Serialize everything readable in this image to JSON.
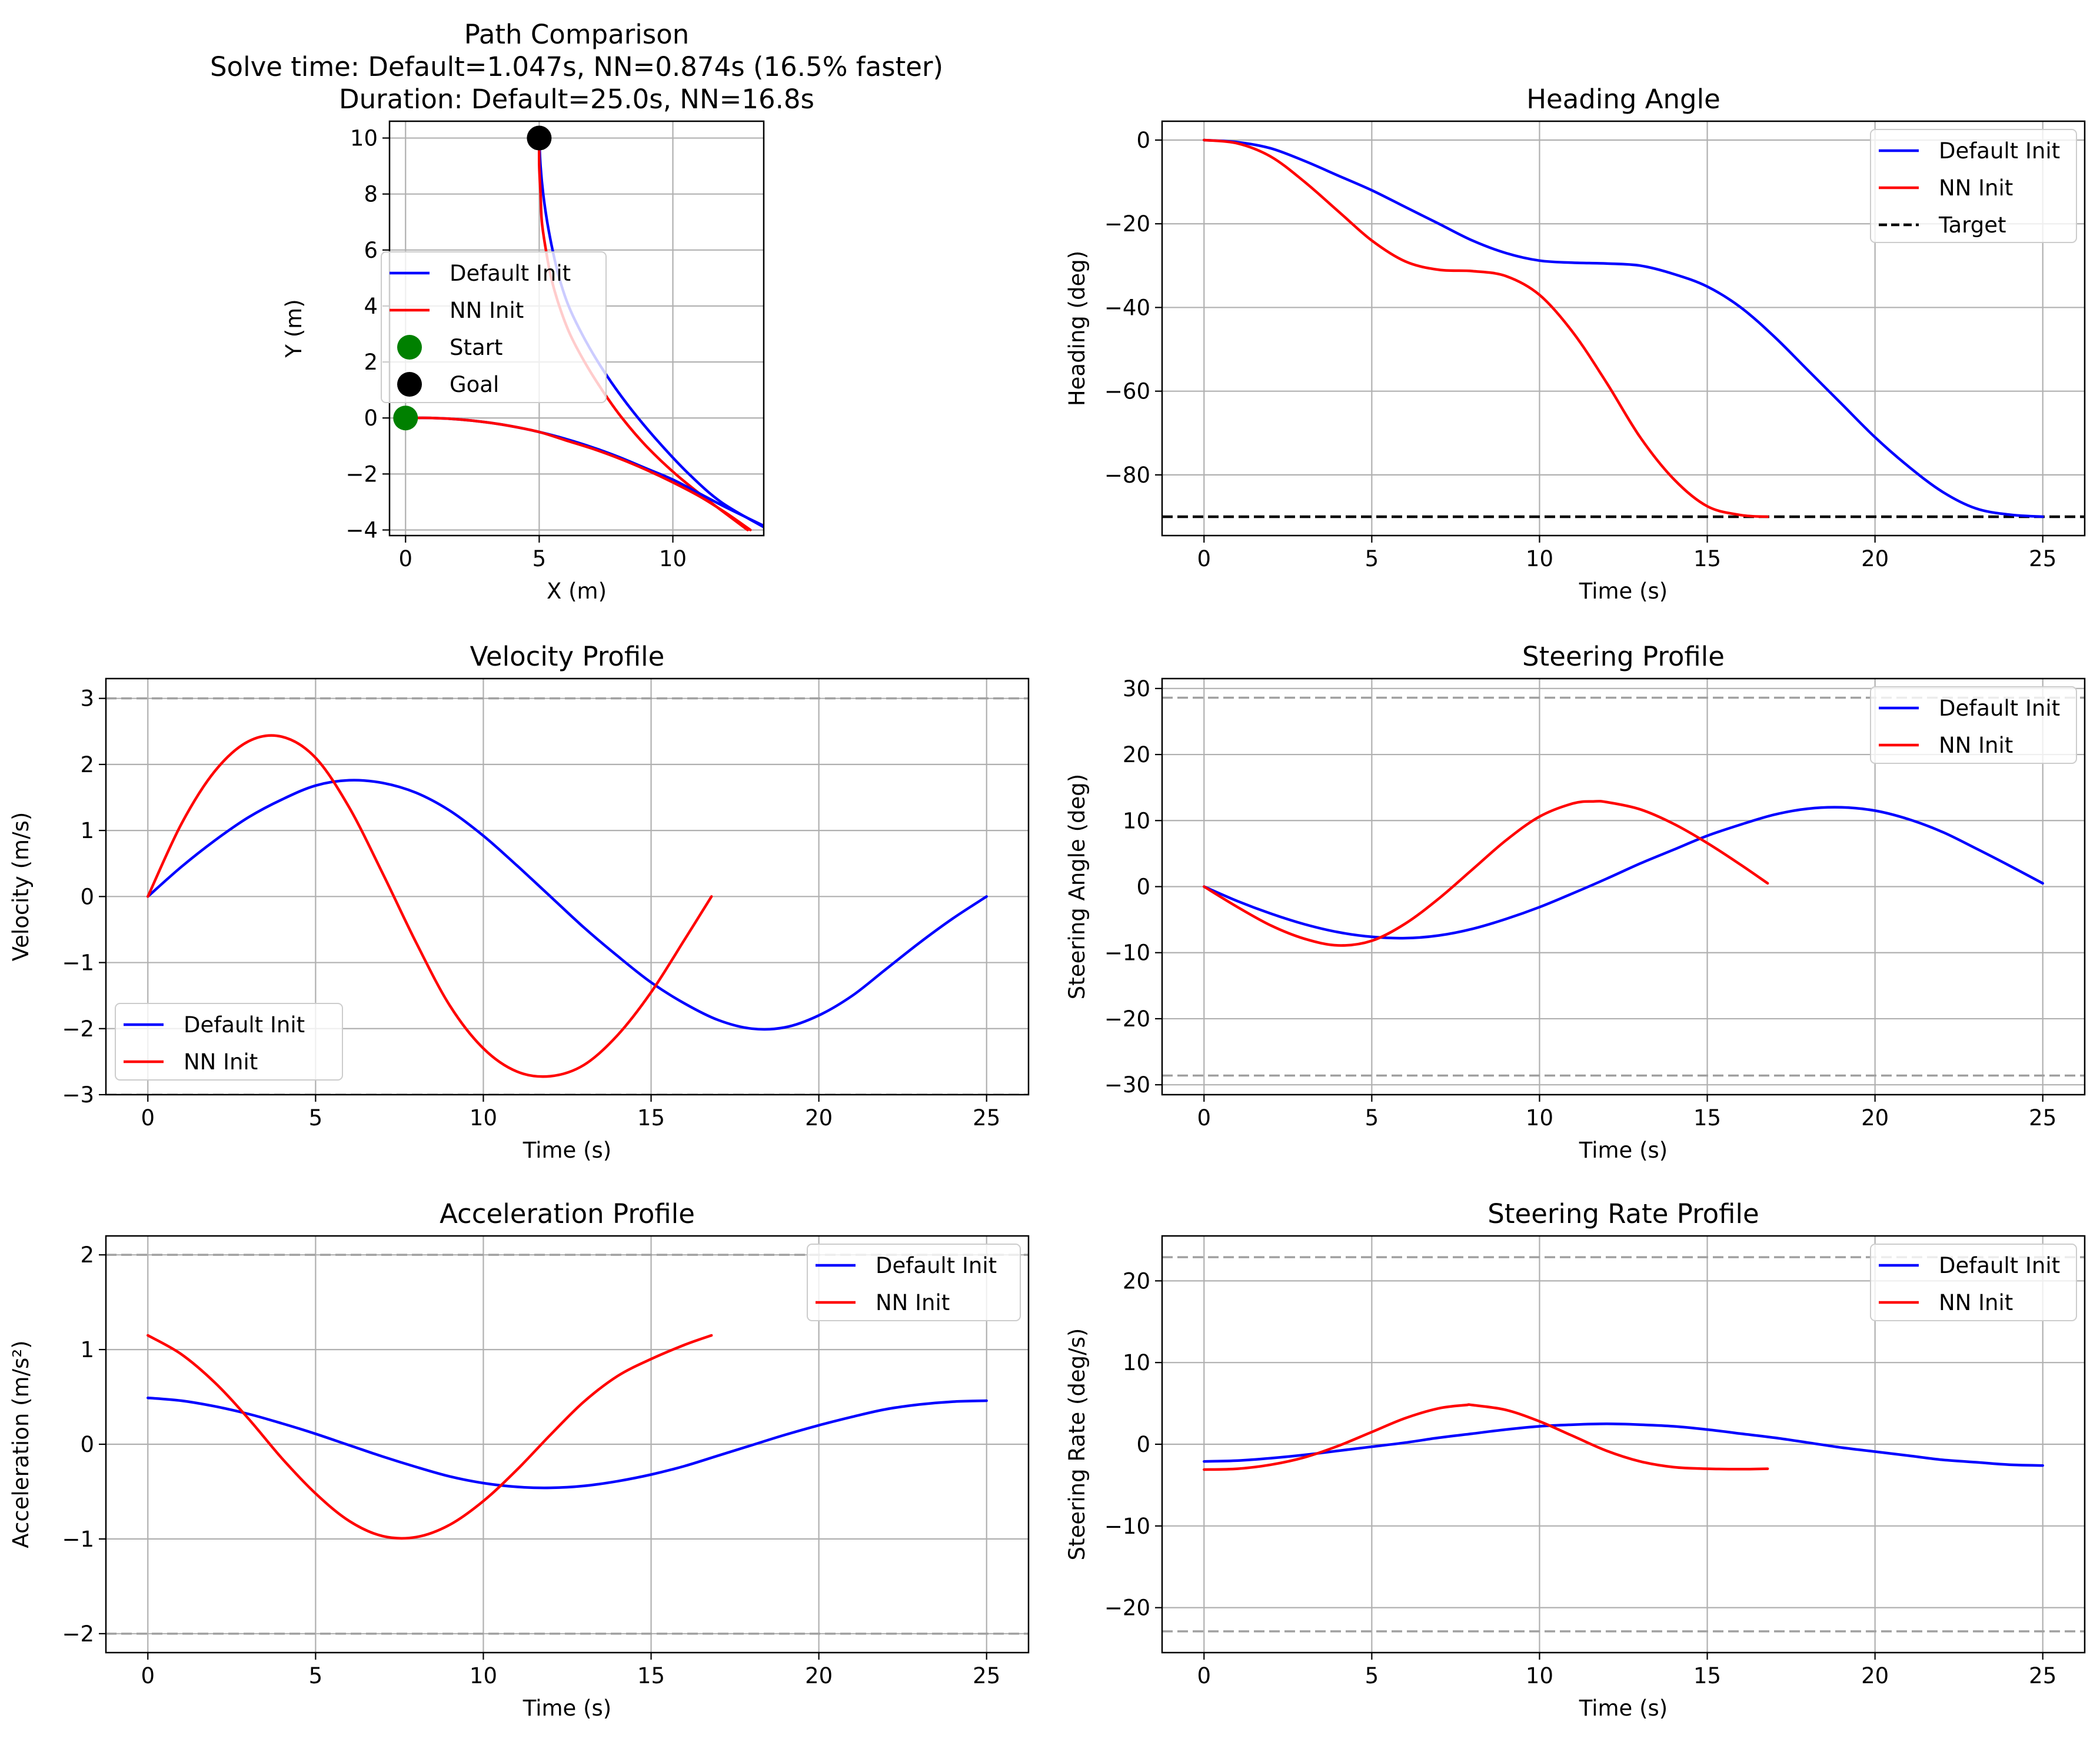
{
  "colors": {
    "default_series": "#0000ff",
    "nn_series": "#ff0000",
    "start_marker": "#008000",
    "goal_marker": "#000000",
    "grid": "#b0b0b0",
    "limit_line": "#a0a0a0",
    "target_line": "#000000"
  },
  "chart_data": [
    {
      "id": "path",
      "type": "line",
      "title": "Path Comparison\nSolve time: Default=1.047s, NN=0.874s (16.5% faster)\nDuration: Default=25.0s, NN=16.8s",
      "xlabel": "X (m)",
      "ylabel": "Y (m)",
      "xlim": [
        -0.6,
        13.4
      ],
      "ylim": [
        -4.2,
        10.6
      ],
      "xticks": [
        0,
        5,
        10
      ],
      "yticks": [
        -4,
        -2,
        0,
        2,
        4,
        6,
        8,
        10
      ],
      "grid": true,
      "legend": {
        "placement": "center-left",
        "entries": [
          "Default Init",
          "NN Init",
          "Start",
          "Goal"
        ]
      },
      "series": [
        {
          "name": "Default Init",
          "color": "#0000ff",
          "points": [
            [
              5.0,
              10.0
            ],
            [
              5.05,
              9.0
            ],
            [
              5.15,
              8.0
            ],
            [
              5.3,
              7.0
            ],
            [
              5.5,
              6.0
            ],
            [
              5.75,
              5.0
            ],
            [
              6.1,
              4.0
            ],
            [
              6.6,
              3.0
            ],
            [
              7.2,
              2.0
            ],
            [
              7.9,
              1.0
            ],
            [
              8.7,
              0.0
            ],
            [
              9.6,
              -1.0
            ],
            [
              10.6,
              -2.0
            ],
            [
              11.8,
              -3.0
            ],
            [
              13.4,
              -3.9
            ]
          ]
        },
        {
          "name": "NN Init",
          "color": "#ff0000",
          "points": [
            [
              5.0,
              10.0
            ],
            [
              5.0,
              9.0
            ],
            [
              5.05,
              8.0
            ],
            [
              5.1,
              7.0
            ],
            [
              5.25,
              6.0
            ],
            [
              5.45,
              5.0
            ],
            [
              5.75,
              4.0
            ],
            [
              6.15,
              3.0
            ],
            [
              6.7,
              2.0
            ],
            [
              7.35,
              1.0
            ],
            [
              8.1,
              0.0
            ],
            [
              9.0,
              -1.0
            ],
            [
              10.1,
              -2.0
            ],
            [
              11.4,
              -3.0
            ],
            [
              12.8,
              -4.0
            ]
          ]
        },
        {
          "name": "Default Init",
          "color": "#0000ff",
          "points": [
            [
              0.0,
              0.0
            ],
            [
              1.0,
              0.0
            ],
            [
              2.0,
              -0.05
            ],
            [
              3.0,
              -0.15
            ],
            [
              4.0,
              -0.3
            ],
            [
              5.0,
              -0.5
            ],
            [
              6.0,
              -0.75
            ],
            [
              7.0,
              -1.05
            ],
            [
              8.0,
              -1.4
            ],
            [
              9.0,
              -1.8
            ],
            [
              10.0,
              -2.2
            ],
            [
              11.0,
              -2.7
            ],
            [
              12.0,
              -3.2
            ],
            [
              13.4,
              -3.85
            ]
          ]
        },
        {
          "name": "NN Init",
          "color": "#ff0000",
          "points": [
            [
              0.0,
              0.0
            ],
            [
              1.0,
              0.0
            ],
            [
              2.0,
              -0.05
            ],
            [
              3.0,
              -0.15
            ],
            [
              4.0,
              -0.3
            ],
            [
              5.0,
              -0.5
            ],
            [
              6.0,
              -0.8
            ],
            [
              7.0,
              -1.1
            ],
            [
              8.0,
              -1.45
            ],
            [
              9.0,
              -1.85
            ],
            [
              10.0,
              -2.3
            ],
            [
              11.0,
              -2.8
            ],
            [
              12.0,
              -3.4
            ],
            [
              12.9,
              -4.0
            ]
          ]
        }
      ],
      "markers": [
        {
          "name": "Start",
          "x": 0,
          "y": 0,
          "color": "#008000"
        },
        {
          "name": "Goal",
          "x": 5,
          "y": 10,
          "color": "#000000"
        }
      ]
    },
    {
      "id": "heading",
      "type": "line",
      "title": "Heading Angle",
      "xlabel": "Time (s)",
      "ylabel": "Heading (deg)",
      "xlim": [
        -1.25,
        26.25
      ],
      "ylim": [
        -94.5,
        4.5
      ],
      "xticks": [
        0,
        5,
        10,
        15,
        20,
        25
      ],
      "yticks": [
        0,
        -20,
        -40,
        -60,
        -80
      ],
      "ytick_labels": [
        "0",
        "−20",
        "−40",
        "−60",
        "−80"
      ],
      "grid": true,
      "legend": {
        "placement": "top-right",
        "entries": [
          "Default Init",
          "NN Init",
          "Target"
        ]
      },
      "series": [
        {
          "name": "Default Init",
          "color": "#0000ff",
          "x": [
            0,
            1,
            2,
            3,
            4,
            5,
            6,
            7,
            8,
            9,
            10,
            11,
            12,
            13,
            14,
            15,
            16,
            17,
            18,
            19,
            20,
            21,
            22,
            23,
            24,
            25
          ],
          "y": [
            0,
            -0.5,
            -2,
            -5,
            -8.5,
            -12,
            -16,
            -20,
            -24,
            -27,
            -28.8,
            -29.3,
            -29.5,
            -30,
            -32,
            -35,
            -40,
            -47,
            -55,
            -63,
            -71,
            -78,
            -84,
            -88,
            -89.5,
            -90
          ]
        },
        {
          "name": "NN Init",
          "color": "#ff0000",
          "x": [
            0,
            1,
            2,
            3,
            4,
            5,
            6,
            7,
            8,
            9,
            10,
            11,
            12,
            13,
            14,
            15,
            16,
            16.8
          ],
          "y": [
            0,
            -0.8,
            -4,
            -10,
            -17,
            -24,
            -29,
            -31,
            -31.3,
            -32.5,
            -37,
            -46,
            -58,
            -71,
            -81,
            -87.5,
            -89.6,
            -90
          ]
        }
      ],
      "reference_lines": [
        {
          "name": "Target",
          "y": -90,
          "color": "#000000",
          "style": "dashed"
        }
      ]
    },
    {
      "id": "velocity",
      "type": "line",
      "title": "Velocity Profile",
      "xlabel": "Time (s)",
      "ylabel": "Velocity (m/s)",
      "xlim": [
        -1.25,
        26.25
      ],
      "ylim": [
        -3.0,
        3.3
      ],
      "xticks": [
        0,
        5,
        10,
        15,
        20,
        25
      ],
      "yticks": [
        3,
        2,
        1,
        0,
        -1,
        -2,
        -3
      ],
      "ytick_labels": [
        "3",
        "2",
        "1",
        "0",
        "−1",
        "−2",
        "−3"
      ],
      "grid": true,
      "legend": {
        "placement": "bottom-left",
        "entries": [
          "Default Init",
          "NN Init"
        ]
      },
      "series": [
        {
          "name": "Default Init",
          "color": "#0000ff",
          "x": [
            0,
            1,
            2,
            3,
            4,
            5,
            6,
            7,
            8,
            9,
            10,
            11,
            12,
            13,
            14,
            15,
            16,
            17,
            18,
            19,
            20,
            21,
            22,
            23,
            24,
            25
          ],
          "y": [
            0,
            0.45,
            0.85,
            1.2,
            1.47,
            1.68,
            1.76,
            1.72,
            1.57,
            1.3,
            0.92,
            0.47,
            0,
            -0.47,
            -0.9,
            -1.3,
            -1.62,
            -1.87,
            -2.0,
            -1.98,
            -1.8,
            -1.5,
            -1.1,
            -0.7,
            -0.33,
            0
          ]
        },
        {
          "name": "NN Init",
          "color": "#ff0000",
          "x": [
            0,
            1,
            2,
            3,
            4,
            5,
            6,
            7,
            8,
            9,
            10,
            11,
            12,
            13,
            14,
            15,
            16,
            16.8
          ],
          "y": [
            0,
            1.1,
            1.9,
            2.35,
            2.42,
            2.1,
            1.35,
            0.35,
            -0.7,
            -1.65,
            -2.3,
            -2.65,
            -2.72,
            -2.55,
            -2.1,
            -1.45,
            -0.65,
            0
          ]
        }
      ],
      "reference_lines": [
        {
          "y": 3,
          "color": "#a0a0a0",
          "style": "dashed"
        },
        {
          "y": -3,
          "color": "#a0a0a0",
          "style": "dashed"
        }
      ]
    },
    {
      "id": "steering",
      "type": "line",
      "title": "Steering Profile",
      "xlabel": "Time (s)",
      "ylabel": "Steering Angle (deg)",
      "xlim": [
        -1.25,
        26.25
      ],
      "ylim": [
        -31.5,
        31.5
      ],
      "xticks": [
        0,
        5,
        10,
        15,
        20,
        25
      ],
      "yticks": [
        30,
        20,
        10,
        0,
        -10,
        -20,
        -30
      ],
      "ytick_labels": [
        "30",
        "20",
        "10",
        "0",
        "−10",
        "−20",
        "−30"
      ],
      "grid": true,
      "legend": {
        "placement": "top-right",
        "entries": [
          "Default Init",
          "NN Init"
        ]
      },
      "series": [
        {
          "name": "Default Init",
          "color": "#0000ff",
          "x": [
            0,
            1,
            2,
            3,
            4,
            5,
            6,
            7,
            8,
            9,
            10,
            11,
            12,
            13,
            14,
            15,
            16,
            17,
            18,
            19,
            20,
            21,
            22,
            23,
            24,
            25
          ],
          "y": [
            0,
            -2.2,
            -4.1,
            -5.7,
            -6.9,
            -7.6,
            -7.8,
            -7.4,
            -6.4,
            -4.9,
            -3.1,
            -1.0,
            1.2,
            3.5,
            5.6,
            7.7,
            9.4,
            10.9,
            11.8,
            12.0,
            11.5,
            10.2,
            8.3,
            5.8,
            3.2,
            0.5
          ]
        },
        {
          "name": "NN Init",
          "color": "#ff0000",
          "x": [
            0,
            1,
            2,
            3,
            4,
            5,
            6,
            7,
            8,
            9,
            10,
            11,
            11.6,
            12,
            13,
            14,
            15,
            16,
            16.8
          ],
          "y": [
            0,
            -3.1,
            -5.9,
            -7.9,
            -8.9,
            -8.2,
            -5.6,
            -1.8,
            2.6,
            7.0,
            10.6,
            12.6,
            12.9,
            12.8,
            11.7,
            9.5,
            6.6,
            3.3,
            0.5
          ]
        }
      ],
      "reference_lines": [
        {
          "y": 28.6,
          "color": "#a0a0a0",
          "style": "dashed"
        },
        {
          "y": -28.6,
          "color": "#a0a0a0",
          "style": "dashed"
        }
      ]
    },
    {
      "id": "acceleration",
      "type": "line",
      "title": "Acceleration Profile",
      "xlabel": "Time (s)",
      "ylabel": "Acceleration (m/s²)",
      "xlim": [
        -1.25,
        26.25
      ],
      "ylim": [
        -2.2,
        2.2
      ],
      "xticks": [
        0,
        5,
        10,
        15,
        20,
        25
      ],
      "yticks": [
        2,
        1,
        0,
        -1,
        -2
      ],
      "ytick_labels": [
        "2",
        "1",
        "0",
        "−1",
        "−2"
      ],
      "grid": true,
      "legend": {
        "placement": "top-right",
        "entries": [
          "Default Init",
          "NN Init"
        ]
      },
      "series": [
        {
          "name": "Default Init",
          "color": "#0000ff",
          "x": [
            0,
            1,
            2,
            3,
            4,
            5,
            6,
            7,
            8,
            9,
            10,
            11,
            12,
            13,
            14,
            15,
            16,
            17,
            18,
            19,
            20,
            21,
            22,
            23,
            24,
            25
          ],
          "y": [
            0.49,
            0.46,
            0.4,
            0.32,
            0.22,
            0.11,
            -0.01,
            -0.13,
            -0.24,
            -0.34,
            -0.41,
            -0.45,
            -0.46,
            -0.44,
            -0.39,
            -0.32,
            -0.23,
            -0.12,
            -0.01,
            0.1,
            0.2,
            0.29,
            0.37,
            0.42,
            0.45,
            0.46
          ]
        },
        {
          "name": "NN Init",
          "color": "#ff0000",
          "x": [
            0,
            1,
            2,
            3,
            4,
            5,
            6,
            7,
            8,
            9,
            10,
            11,
            12,
            13,
            14,
            15,
            16,
            16.8
          ],
          "y": [
            1.15,
            0.95,
            0.65,
            0.27,
            -0.15,
            -0.52,
            -0.81,
            -0.97,
            -0.98,
            -0.85,
            -0.6,
            -0.27,
            0.1,
            0.45,
            0.72,
            0.9,
            1.05,
            1.15
          ]
        }
      ],
      "reference_lines": [
        {
          "y": 2,
          "color": "#a0a0a0",
          "style": "dashed"
        },
        {
          "y": -2,
          "color": "#a0a0a0",
          "style": "dashed"
        }
      ]
    },
    {
      "id": "steering_rate",
      "type": "line",
      "title": "Steering Rate Profile",
      "xlabel": "Time (s)",
      "ylabel": "Steering Rate (deg/s)",
      "xlim": [
        -1.25,
        26.25
      ],
      "ylim": [
        -25.5,
        25.5
      ],
      "xticks": [
        0,
        5,
        10,
        15,
        20,
        25
      ],
      "yticks": [
        20,
        10,
        0,
        -10,
        -20
      ],
      "ytick_labels": [
        "20",
        "10",
        "0",
        "−10",
        "−20"
      ],
      "grid": true,
      "legend": {
        "placement": "top-right",
        "entries": [
          "Default Init",
          "NN Init"
        ]
      },
      "series": [
        {
          "name": "Default Init",
          "color": "#0000ff",
          "x": [
            0,
            1,
            2,
            3,
            4,
            5,
            6,
            7,
            8,
            9,
            10,
            11,
            12,
            13,
            14,
            15,
            16,
            17,
            18,
            19,
            20,
            21,
            22,
            23,
            24,
            25
          ],
          "y": [
            -2.1,
            -2.0,
            -1.7,
            -1.3,
            -0.8,
            -0.3,
            0.2,
            0.8,
            1.3,
            1.8,
            2.2,
            2.4,
            2.5,
            2.4,
            2.2,
            1.8,
            1.3,
            0.8,
            0.2,
            -0.4,
            -0.9,
            -1.4,
            -1.9,
            -2.2,
            -2.5,
            -2.6
          ]
        },
        {
          "name": "NN Init",
          "color": "#ff0000",
          "x": [
            0,
            1,
            2,
            3,
            4,
            5,
            6,
            7,
            7.8,
            8,
            9,
            10,
            11,
            12,
            13,
            14,
            15,
            16,
            16.8
          ],
          "y": [
            -3.1,
            -3.0,
            -2.5,
            -1.6,
            -0.2,
            1.5,
            3.2,
            4.4,
            4.8,
            4.8,
            4.2,
            2.8,
            1.0,
            -0.8,
            -2.1,
            -2.8,
            -3.0,
            -3.05,
            -3.0
          ]
        }
      ],
      "reference_lines": [
        {
          "y": 22.9,
          "color": "#a0a0a0",
          "style": "dashed"
        },
        {
          "y": -22.9,
          "color": "#a0a0a0",
          "style": "dashed"
        }
      ]
    }
  ]
}
